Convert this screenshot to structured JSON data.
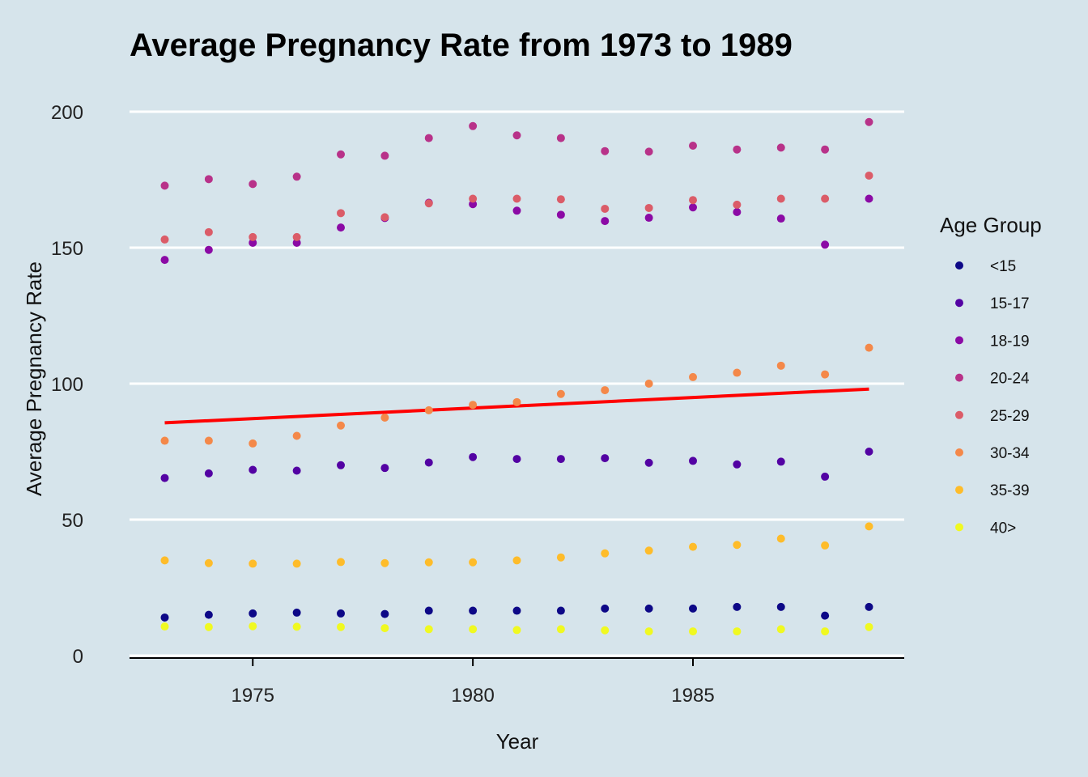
{
  "chart_data": {
    "type": "scatter",
    "title": "Average Pregnancy Rate from 1973 to 1989",
    "xlabel": "Year",
    "ylabel": "Average Pregnancy Rate",
    "xlim": [
      1972.2,
      1989.8
    ],
    "ylim": [
      0,
      200
    ],
    "xticks": [
      1975,
      1980,
      1985
    ],
    "yticks": [
      0,
      50,
      100,
      150,
      200
    ],
    "grid": "horizontal",
    "legend": {
      "title": "Age Group",
      "position": "right"
    },
    "x": [
      1973,
      1974,
      1975,
      1976,
      1977,
      1978,
      1979,
      1980,
      1981,
      1982,
      1983,
      1984,
      1985,
      1986,
      1987,
      1988,
      1989
    ],
    "series": [
      {
        "name": "<15",
        "color": "#0d0887",
        "values": [
          14,
          15,
          15.5,
          15.8,
          15.5,
          15.3,
          16.5,
          16.5,
          16.5,
          16.5,
          17.3,
          17.3,
          17.3,
          17.9,
          17.9,
          14.7,
          17.9
        ]
      },
      {
        "name": "15-17",
        "color": "#5302a3",
        "values": [
          65.3,
          67,
          68.3,
          68,
          70,
          69,
          71,
          73,
          72.3,
          72.3,
          72.6,
          70.9,
          71.6,
          70.3,
          71.3,
          65.8,
          75
        ]
      },
      {
        "name": "18-19",
        "color": "#8b0aa5",
        "values": [
          145.5,
          149.2,
          151.8,
          151.8,
          157.4,
          160.9,
          166.5,
          166,
          163.6,
          162.1,
          159.8,
          161,
          164.8,
          163.1,
          160.7,
          151.1,
          168
        ]
      },
      {
        "name": "20-24",
        "color": "#b83289",
        "values": [
          172.8,
          175.2,
          173.4,
          176.1,
          184.3,
          183.8,
          190.3,
          194.7,
          191.3,
          190.3,
          185.5,
          185.3,
          187.5,
          186.1,
          186.8,
          186.1,
          196.2
        ]
      },
      {
        "name": "25-29",
        "color": "#db5c68",
        "values": [
          153,
          155.7,
          153.9,
          153.9,
          162.7,
          161.2,
          166.3,
          168,
          168,
          167.8,
          164.3,
          164.6,
          167.5,
          165.8,
          168,
          168,
          176.5
        ]
      },
      {
        "name": "30-34",
        "color": "#f48849",
        "values": [
          79,
          79,
          78,
          80.8,
          84.6,
          87.5,
          90.2,
          92.2,
          93.2,
          96.2,
          97.6,
          100,
          102.4,
          104,
          106.6,
          103.4,
          113.2
        ]
      },
      {
        "name": "35-39",
        "color": "#febc2a",
        "values": [
          35,
          34,
          33.8,
          33.8,
          34.4,
          34,
          34.3,
          34.3,
          35,
          36.1,
          37.6,
          38.6,
          40,
          40.7,
          43,
          40.5,
          47.5
        ]
      },
      {
        "name": "40>",
        "color": "#f0f921",
        "values": [
          10.7,
          10.5,
          10.8,
          10.6,
          10.5,
          10.1,
          9.7,
          9.7,
          9.4,
          9.7,
          9.3,
          8.9,
          8.9,
          8.9,
          9.7,
          8.9,
          10.5
        ]
      }
    ],
    "trend_line": {
      "color": "#ff0000",
      "x": [
        1973,
        1989
      ],
      "y": [
        85.6,
        98
      ]
    }
  }
}
